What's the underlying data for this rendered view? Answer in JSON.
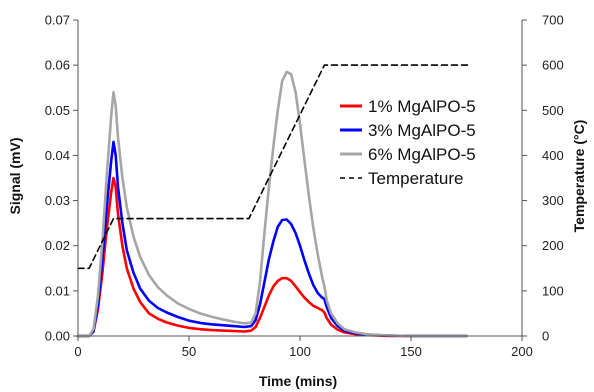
{
  "chart_data": {
    "type": "line",
    "title": "",
    "xlabel": "Time (mins)",
    "ylabel": "Signal (mV)",
    "y2label": "Temperature (°C)",
    "xlim": [
      0,
      200
    ],
    "ylim": [
      0,
      0.07
    ],
    "y2lim": [
      0,
      700
    ],
    "x_ticks": [
      "0",
      "50",
      "100",
      "150",
      "200"
    ],
    "y_ticks": [
      "0.00",
      "0.01",
      "0.02",
      "0.03",
      "0.04",
      "0.05",
      "0.06",
      "0.07"
    ],
    "y2_ticks": [
      "0",
      "100",
      "200",
      "300",
      "400",
      "500",
      "600",
      "700"
    ],
    "grid": false,
    "legend_position": "right",
    "series": [
      {
        "name": "1% MgAlPO-5",
        "color": "#ff0000",
        "axis": "left",
        "style": "solid",
        "x": [
          0,
          5,
          7,
          9,
          11,
          13,
          15,
          16,
          17,
          18,
          20,
          22,
          25,
          28,
          32,
          36,
          40,
          45,
          50,
          55,
          60,
          65,
          70,
          75,
          78,
          80,
          82,
          84,
          86,
          88,
          90,
          92,
          94,
          96,
          98,
          100,
          102,
          104,
          106,
          108,
          110,
          111,
          112,
          114,
          117,
          120,
          125,
          130,
          135,
          140,
          150,
          160,
          175
        ],
        "y": [
          0,
          0,
          0.001,
          0.006,
          0.014,
          0.024,
          0.032,
          0.035,
          0.033,
          0.027,
          0.02,
          0.015,
          0.0105,
          0.0075,
          0.005,
          0.0038,
          0.003,
          0.0023,
          0.0018,
          0.0015,
          0.0013,
          0.0012,
          0.0011,
          0.001,
          0.0012,
          0.002,
          0.004,
          0.0065,
          0.009,
          0.011,
          0.0122,
          0.0128,
          0.0128,
          0.0122,
          0.011,
          0.0097,
          0.0085,
          0.0075,
          0.0067,
          0.0062,
          0.0057,
          0.0052,
          0.004,
          0.0025,
          0.0014,
          0.0008,
          0.0004,
          0.0002,
          0.0001,
          0,
          0,
          0,
          0
        ]
      },
      {
        "name": "3% MgAlPO-5",
        "color": "#0000ff",
        "axis": "left",
        "style": "solid",
        "x": [
          0,
          5,
          7,
          9,
          11,
          13,
          15,
          16,
          17,
          18,
          20,
          22,
          25,
          28,
          32,
          36,
          40,
          45,
          50,
          55,
          60,
          65,
          70,
          75,
          78,
          80,
          82,
          84,
          86,
          88,
          90,
          92,
          94,
          96,
          98,
          100,
          102,
          104,
          106,
          108,
          110,
          111,
          112,
          114,
          117,
          120,
          125,
          130,
          135,
          140,
          150,
          160,
          175
        ],
        "y": [
          0,
          0,
          0.001,
          0.007,
          0.017,
          0.029,
          0.039,
          0.043,
          0.04,
          0.033,
          0.025,
          0.019,
          0.014,
          0.0105,
          0.0078,
          0.0062,
          0.0052,
          0.0042,
          0.0034,
          0.0029,
          0.0026,
          0.0024,
          0.0022,
          0.002,
          0.0022,
          0.0035,
          0.007,
          0.012,
          0.017,
          0.021,
          0.0242,
          0.0257,
          0.0258,
          0.0248,
          0.0228,
          0.02,
          0.0168,
          0.0138,
          0.0113,
          0.0095,
          0.0085,
          0.0082,
          0.0065,
          0.004,
          0.0022,
          0.0012,
          0.0006,
          0.0003,
          0.0002,
          0.0001,
          0,
          0,
          0
        ]
      },
      {
        "name": "6% MgAlPO-5",
        "color": "#a6a6a6",
        "axis": "left",
        "style": "solid",
        "x": [
          0,
          5,
          7,
          9,
          11,
          13,
          15,
          16,
          17,
          18,
          20,
          22,
          25,
          28,
          32,
          36,
          40,
          45,
          50,
          55,
          60,
          65,
          70,
          75,
          78,
          80,
          82,
          84,
          86,
          88,
          90,
          92,
          94,
          96,
          98,
          100,
          102,
          104,
          106,
          108,
          110,
          111,
          112,
          114,
          117,
          120,
          125,
          130,
          135,
          140,
          150,
          160,
          175
        ],
        "y": [
          0,
          0,
          0.0015,
          0.009,
          0.021,
          0.036,
          0.049,
          0.054,
          0.051,
          0.044,
          0.035,
          0.0285,
          0.022,
          0.0175,
          0.0135,
          0.0108,
          0.009,
          0.0072,
          0.006,
          0.005,
          0.0043,
          0.0037,
          0.0032,
          0.0028,
          0.003,
          0.005,
          0.012,
          0.023,
          0.033,
          0.042,
          0.05,
          0.0565,
          0.0585,
          0.058,
          0.054,
          0.047,
          0.039,
          0.031,
          0.024,
          0.018,
          0.013,
          0.011,
          0.008,
          0.005,
          0.0028,
          0.0015,
          0.0008,
          0.0004,
          0.0002,
          0.0001,
          0,
          0,
          0
        ]
      },
      {
        "name": "Temperature",
        "color": "#000000",
        "axis": "right",
        "style": "dashed",
        "x": [
          0,
          5,
          16,
          77,
          111,
          177
        ],
        "y": [
          150,
          150,
          260,
          260,
          600,
          600
        ]
      }
    ]
  }
}
